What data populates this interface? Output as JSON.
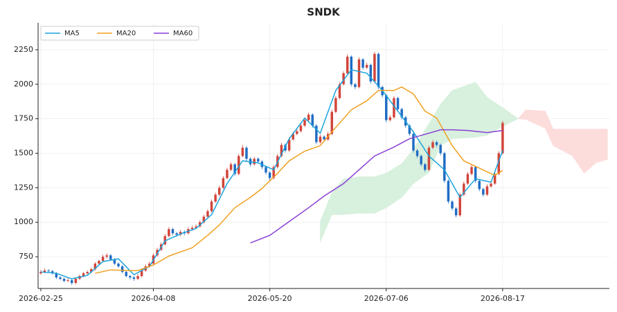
{
  "chart_data": {
    "type": "candlestick",
    "title": "SNDK",
    "xlim": [
      -0.7,
      146.5
    ],
    "xticks": [
      {
        "value": 0,
        "label": "2026-02-25"
      },
      {
        "value": 29,
        "label": "2026-04-08"
      },
      {
        "value": 59,
        "label": "2026-05-20"
      },
      {
        "value": 89,
        "label": "2026-07-06"
      },
      {
        "value": 119,
        "label": "2026-08-17"
      }
    ],
    "ylim": [
      520,
      2445
    ],
    "yticks": [
      750,
      1000,
      1250,
      1500,
      1750,
      2000,
      2250
    ],
    "grid": true,
    "legend": "upper left",
    "up_color": "#d1443a",
    "down_color": "#1f6cc4",
    "candles": [
      [
        630,
        655,
        620,
        640
      ],
      [
        640,
        665,
        630,
        650
      ],
      [
        650,
        660,
        635,
        645
      ],
      [
        645,
        655,
        620,
        630
      ],
      [
        630,
        640,
        590,
        600
      ],
      [
        600,
        610,
        580,
        590
      ],
      [
        590,
        600,
        565,
        575
      ],
      [
        575,
        595,
        565,
        580
      ],
      [
        580,
        590,
        545,
        560
      ],
      [
        560,
        600,
        550,
        590
      ],
      [
        590,
        620,
        580,
        610
      ],
      [
        610,
        640,
        600,
        630
      ],
      [
        630,
        650,
        620,
        640
      ],
      [
        640,
        670,
        630,
        660
      ],
      [
        660,
        710,
        650,
        700
      ],
      [
        700,
        730,
        690,
        720
      ],
      [
        720,
        765,
        710,
        750
      ],
      [
        750,
        775,
        735,
        760
      ],
      [
        760,
        770,
        720,
        730
      ],
      [
        730,
        740,
        690,
        700
      ],
      [
        700,
        710,
        670,
        680
      ],
      [
        680,
        690,
        630,
        640
      ],
      [
        640,
        650,
        600,
        610
      ],
      [
        610,
        620,
        585,
        600
      ],
      [
        600,
        610,
        575,
        590
      ],
      [
        590,
        625,
        580,
        610
      ],
      [
        610,
        665,
        600,
        650
      ],
      [
        650,
        695,
        640,
        680
      ],
      [
        680,
        715,
        670,
        700
      ],
      [
        700,
        775,
        690,
        760
      ],
      [
        760,
        815,
        750,
        800
      ],
      [
        800,
        855,
        790,
        840
      ],
      [
        840,
        915,
        830,
        900
      ],
      [
        900,
        965,
        890,
        950
      ],
      [
        950,
        960,
        905,
        920
      ],
      [
        920,
        930,
        895,
        910
      ],
      [
        910,
        945,
        900,
        930
      ],
      [
        930,
        940,
        905,
        920
      ],
      [
        920,
        965,
        910,
        950
      ],
      [
        950,
        975,
        940,
        960
      ],
      [
        960,
        985,
        950,
        970
      ],
      [
        970,
        1015,
        960,
        1000
      ],
      [
        1000,
        1055,
        990,
        1040
      ],
      [
        1040,
        1095,
        1030,
        1080
      ],
      [
        1080,
        1165,
        1070,
        1150
      ],
      [
        1150,
        1215,
        1140,
        1200
      ],
      [
        1200,
        1265,
        1190,
        1250
      ],
      [
        1250,
        1335,
        1240,
        1320
      ],
      [
        1320,
        1395,
        1310,
        1380
      ],
      [
        1380,
        1435,
        1370,
        1420
      ],
      [
        1420,
        1430,
        1335,
        1350
      ],
      [
        1350,
        1495,
        1340,
        1480
      ],
      [
        1480,
        1560,
        1470,
        1540
      ],
      [
        1540,
        1550,
        1445,
        1460
      ],
      [
        1460,
        1470,
        1405,
        1420
      ],
      [
        1420,
        1475,
        1410,
        1460
      ],
      [
        1460,
        1470,
        1425,
        1440
      ],
      [
        1440,
        1450,
        1385,
        1400
      ],
      [
        1400,
        1410,
        1345,
        1360
      ],
      [
        1360,
        1370,
        1305,
        1320
      ],
      [
        1320,
        1415,
        1310,
        1400
      ],
      [
        1400,
        1495,
        1390,
        1480
      ],
      [
        1480,
        1575,
        1470,
        1560
      ],
      [
        1560,
        1570,
        1505,
        1520
      ],
      [
        1520,
        1615,
        1510,
        1600
      ],
      [
        1600,
        1655,
        1590,
        1640
      ],
      [
        1640,
        1675,
        1630,
        1660
      ],
      [
        1660,
        1715,
        1650,
        1700
      ],
      [
        1700,
        1755,
        1690,
        1740
      ],
      [
        1740,
        1795,
        1730,
        1780
      ],
      [
        1780,
        1790,
        1685,
        1700
      ],
      [
        1700,
        1710,
        1565,
        1580
      ],
      [
        1580,
        1635,
        1570,
        1620
      ],
      [
        1620,
        1630,
        1585,
        1600
      ],
      [
        1600,
        1655,
        1590,
        1640
      ],
      [
        1640,
        1815,
        1630,
        1800
      ],
      [
        1800,
        1915,
        1790,
        1900
      ],
      [
        1900,
        2015,
        1890,
        2000
      ],
      [
        2000,
        2095,
        1990,
        2080
      ],
      [
        2080,
        2215,
        2070,
        2200
      ],
      [
        2200,
        2210,
        1985,
        2000
      ],
      [
        2000,
        2010,
        1965,
        1980
      ],
      [
        1980,
        2195,
        1970,
        2180
      ],
      [
        2180,
        2190,
        2105,
        2120
      ],
      [
        2120,
        2155,
        2110,
        2140
      ],
      [
        2140,
        2150,
        2005,
        2020
      ],
      [
        2020,
        2235,
        2010,
        2220
      ],
      [
        2220,
        2230,
        1965,
        1980
      ],
      [
        1980,
        1990,
        1905,
        1920
      ],
      [
        1920,
        1930,
        1725,
        1740
      ],
      [
        1740,
        1775,
        1730,
        1760
      ],
      [
        1760,
        1915,
        1750,
        1900
      ],
      [
        1900,
        1910,
        1805,
        1820
      ],
      [
        1820,
        1830,
        1745,
        1760
      ],
      [
        1760,
        1770,
        1685,
        1700
      ],
      [
        1700,
        1710,
        1625,
        1640
      ],
      [
        1640,
        1650,
        1505,
        1520
      ],
      [
        1520,
        1530,
        1465,
        1480
      ],
      [
        1480,
        1490,
        1405,
        1420
      ],
      [
        1420,
        1430,
        1365,
        1380
      ],
      [
        1380,
        1555,
        1370,
        1540
      ],
      [
        1540,
        1595,
        1530,
        1580
      ],
      [
        1580,
        1590,
        1545,
        1560
      ],
      [
        1560,
        1570,
        1485,
        1500
      ],
      [
        1500,
        1510,
        1285,
        1300
      ],
      [
        1300,
        1310,
        1135,
        1150
      ],
      [
        1150,
        1160,
        1085,
        1100
      ],
      [
        1100,
        1110,
        1035,
        1050
      ],
      [
        1050,
        1215,
        1040,
        1200
      ],
      [
        1200,
        1295,
        1190,
        1280
      ],
      [
        1280,
        1365,
        1270,
        1350
      ],
      [
        1350,
        1415,
        1340,
        1400
      ],
      [
        1400,
        1410,
        1285,
        1300
      ],
      [
        1300,
        1310,
        1225,
        1240
      ],
      [
        1240,
        1250,
        1185,
        1200
      ],
      [
        1200,
        1275,
        1190,
        1260
      ],
      [
        1260,
        1295,
        1250,
        1280
      ],
      [
        1280,
        1365,
        1270,
        1350
      ],
      [
        1350,
        1515,
        1340,
        1500
      ],
      [
        1500,
        1735,
        1490,
        1720
      ]
    ],
    "series": [
      {
        "name": "MA5",
        "color": "#1aa3dc",
        "x": [
          0,
          4,
          8,
          12,
          16,
          20,
          24,
          28,
          32,
          36,
          40,
          44,
          48,
          52,
          56,
          60,
          64,
          68,
          72,
          76,
          80,
          84,
          88,
          92,
          96,
          100,
          104,
          108,
          112,
          116,
          119
        ],
        "values": [
          640,
          630,
          590,
          615,
          715,
          735,
          620,
          680,
          865,
          915,
          955,
          1055,
          1280,
          1445,
          1430,
          1380,
          1605,
          1755,
          1645,
          1955,
          2105,
          2080,
          1955,
          1805,
          1655,
          1480,
          1380,
          1180,
          1315,
          1290,
          1520
        ]
      },
      {
        "name": "MA20",
        "color": "#f0a020",
        "x": [
          14,
          18,
          23,
          25,
          29,
          33,
          39,
          43,
          46,
          50,
          54,
          57,
          61,
          64,
          68,
          72,
          75,
          80,
          84,
          87,
          91,
          93,
          96,
          99,
          102,
          106,
          109,
          112,
          115,
          117,
          119
        ],
        "values": [
          630,
          655,
          650,
          650,
          690,
          755,
          815,
          905,
          980,
          1105,
          1180,
          1245,
          1355,
          1445,
          1515,
          1555,
          1655,
          1815,
          1880,
          1955,
          1955,
          1980,
          1930,
          1805,
          1755,
          1555,
          1445,
          1405,
          1365,
          1340,
          1375
        ]
      },
      {
        "name": "MA60",
        "color": "#8a3fd6",
        "x": [
          54,
          59,
          64,
          69,
          73,
          78,
          82,
          86,
          91,
          95,
          100,
          103,
          106,
          110,
          115,
          119
        ],
        "values": [
          850,
          905,
          1005,
          1105,
          1190,
          1280,
          1380,
          1480,
          1545,
          1605,
          1645,
          1670,
          1670,
          1665,
          1650,
          1665
        ]
      }
    ],
    "cloud": {
      "up_color": "#d8f0de",
      "down_color": "#fddcdc",
      "x": [
        72,
        75,
        78,
        82,
        86,
        89,
        93,
        96,
        100,
        103,
        106,
        112,
        115,
        119,
        123,
        125,
        130,
        132,
        137,
        140,
        143,
        146
      ],
      "span_a": [
        1005,
        1215,
        1315,
        1330,
        1330,
        1355,
        1425,
        1530,
        1715,
        1855,
        1955,
        2015,
        1905,
        1830,
        1750,
        1745,
        1680,
        1555,
        1480,
        1355,
        1430,
        1455
      ],
      "span_b": [
        855,
        1055,
        1055,
        1065,
        1065,
        1105,
        1180,
        1280,
        1360,
        1555,
        1605,
        1615,
        1630,
        1695,
        1750,
        1815,
        1805,
        1675,
        1675,
        1675,
        1675,
        1675
      ]
    }
  }
}
